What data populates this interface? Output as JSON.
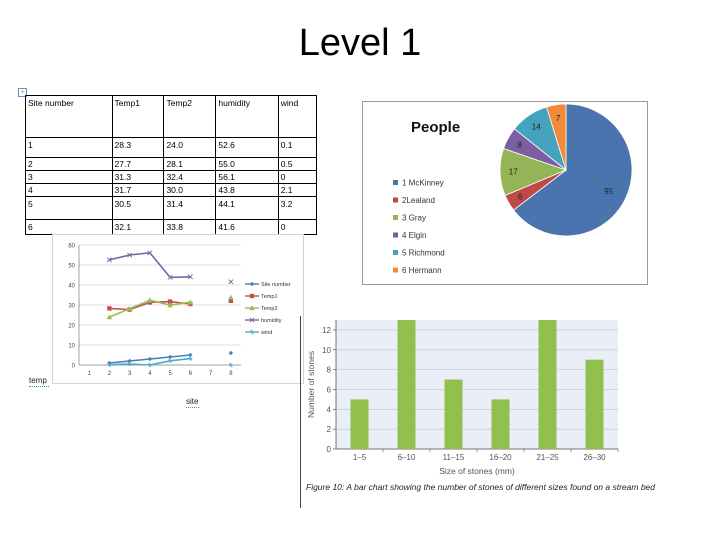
{
  "slide": {
    "title": "Level 1"
  },
  "table": {
    "headers": [
      "Site number",
      "Temp1",
      "Temp2",
      "humidity",
      "wind"
    ],
    "rows": [
      [
        "1",
        "28.3",
        "24.0",
        "52.6",
        "0.1"
      ],
      [
        "2",
        "27.7",
        "28.1",
        "55.0",
        "0.5"
      ],
      [
        "3",
        "31.3",
        "32.4",
        "56.1",
        "0"
      ],
      [
        "4",
        "31.7",
        "30.0",
        "43.8",
        "2.1"
      ],
      [
        "5",
        "30.5",
        "31.4",
        "44.1",
        "3.2"
      ],
      [
        "6",
        "32.1",
        "33.8",
        "41.6",
        "0"
      ]
    ]
  },
  "line_axis_notes": {
    "y_note": "temp",
    "x_note": "site"
  },
  "figure_caption": "Figure 10: A bar chart showing the number of stones of different sizes found on a stream bed",
  "chart_data": [
    {
      "type": "pie",
      "title": "People",
      "labels": [
        "1 McKinney",
        "2Lealand",
        "3 Gray",
        "4 Elgin",
        "5 Richmond",
        "6 Hermann"
      ],
      "values": [
        95,
        6,
        17,
        8,
        14,
        7
      ],
      "colors": [
        "#4a74ad",
        "#bd4a48",
        "#93b557",
        "#7c5fa0",
        "#46a3bd",
        "#f08b3a"
      ],
      "legend": "left"
    },
    {
      "type": "line",
      "title": "",
      "xlabel": "",
      "ylabel": "",
      "x_ticks": [
        1,
        2,
        3,
        4,
        5,
        6,
        7,
        8
      ],
      "y_ticks": [
        0,
        10,
        20,
        30,
        40,
        50,
        60
      ],
      "ylim": [
        0,
        60
      ],
      "grid": "horizontal",
      "legend": "right",
      "series": [
        {
          "name": "Site number",
          "color": "#4a7cc0",
          "marker": "diamond",
          "points": [
            [
              2,
              1
            ],
            [
              3,
              2
            ],
            [
              4,
              3
            ],
            [
              5,
              4
            ],
            [
              6,
              5
            ]
          ],
          "extra": [
            [
              8,
              6
            ]
          ]
        },
        {
          "name": "Temp1",
          "color": "#c0504d",
          "marker": "square",
          "points": [
            [
              2,
              28.3
            ],
            [
              3,
              27.7
            ],
            [
              4,
              31.3
            ],
            [
              5,
              31.7
            ],
            [
              6,
              30.5
            ]
          ],
          "extra": [
            [
              8,
              32.1
            ]
          ]
        },
        {
          "name": "Temp2",
          "color": "#9bbb59",
          "marker": "triangle",
          "points": [
            [
              2,
              24.0
            ],
            [
              3,
              28.1
            ],
            [
              4,
              32.4
            ],
            [
              5,
              30.0
            ],
            [
              6,
              31.4
            ]
          ],
          "extra": [
            [
              8,
              33.8
            ]
          ]
        },
        {
          "name": "humidity",
          "color": "#8064a2",
          "marker": "x",
          "points": [
            [
              2,
              52.6
            ],
            [
              3,
              55.0
            ],
            [
              4,
              56.1
            ],
            [
              5,
              43.8
            ],
            [
              6,
              44.1
            ]
          ],
          "extra": [
            [
              8,
              41.6
            ]
          ]
        },
        {
          "name": "wind",
          "color": "#4bacc6",
          "marker": "star",
          "points": [
            [
              2,
              0.1
            ],
            [
              3,
              0.5
            ],
            [
              4,
              0
            ],
            [
              5,
              2.1
            ],
            [
              6,
              3.2
            ]
          ],
          "extra": [
            [
              8,
              0
            ]
          ]
        }
      ]
    },
    {
      "type": "bar",
      "categories": [
        "1–5",
        "6–10",
        "11–15",
        "16–20",
        "21–25",
        "26–30"
      ],
      "values": [
        5,
        13,
        7,
        5,
        13,
        9
      ],
      "xlabel": "Size of stones (mm)",
      "ylabel": "Number of stones",
      "ylim": [
        0,
        13
      ],
      "y_ticks": [
        0,
        2,
        4,
        6,
        8,
        10,
        12
      ],
      "bar_color": "#92c04e",
      "grid": "horizontal"
    }
  ]
}
